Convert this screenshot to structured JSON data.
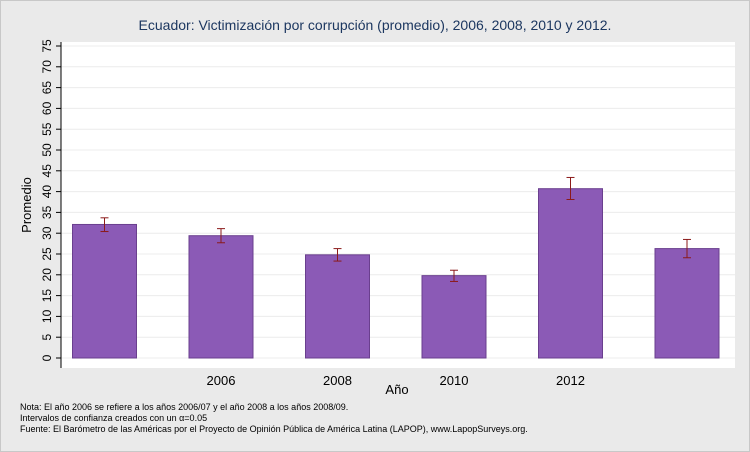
{
  "chart_data": {
    "type": "bar",
    "title": "Ecuador: Victimización por corrupción (promedio), 2006, 2008, 2010 y 2012.",
    "xlabel": "Año",
    "ylabel": "Promedio",
    "categories": [
      "",
      "2006",
      "2008",
      "2010",
      "2012",
      ""
    ],
    "values": [
      32.1,
      29.4,
      24.8,
      19.8,
      40.7,
      26.3
    ],
    "ci_low": [
      30.4,
      27.7,
      23.3,
      18.4,
      38.1,
      24.1
    ],
    "ci_high": [
      33.7,
      31.1,
      26.3,
      21.1,
      43.4,
      28.5
    ],
    "ylim": [
      0,
      75
    ],
    "yticks": [
      0,
      5,
      10,
      15,
      20,
      25,
      30,
      35,
      40,
      45,
      50,
      55,
      60,
      65,
      70,
      75
    ],
    "grid": true,
    "bar_color": "#8b5ab6",
    "bar_edge_color": "#6a3f8e",
    "errorbar_color": "#8b1a1a"
  },
  "notes": {
    "line1": "Nota: El año 2006 se refiere a los años 2006/07 y el año 2008 a los años 2008/09.",
    "line2": "Intervalos de confianza creados con un α=0.05",
    "line3": "Fuente: El Barómetro de las Américas por el Proyecto de Opinión Pública de América Latina (LAPOP), www.LapopSurveys.org."
  }
}
